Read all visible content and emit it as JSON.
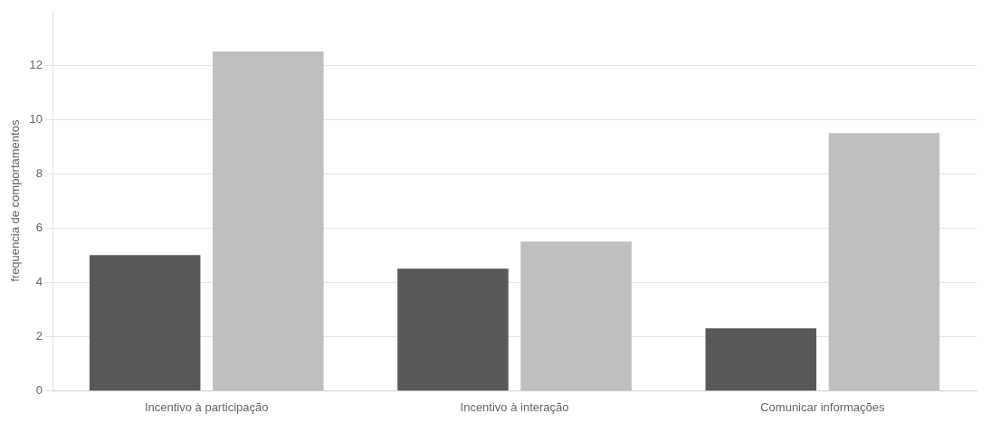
{
  "chart_data": {
    "type": "bar",
    "categories": [
      "Incentivo à participação",
      "Incentivo à interação",
      "Comunicar informações"
    ],
    "series": [
      {
        "color": "#595959",
        "values": [
          5,
          4.5,
          2.3
        ]
      },
      {
        "color": "#bfbfbf",
        "values": [
          12.5,
          5.5,
          9.5
        ]
      }
    ],
    "ylabel": "frequencia de comportamentos",
    "ylim": [
      0,
      14
    ],
    "yticks": [
      0,
      2,
      4,
      6,
      8,
      10,
      12
    ],
    "grid": true
  }
}
